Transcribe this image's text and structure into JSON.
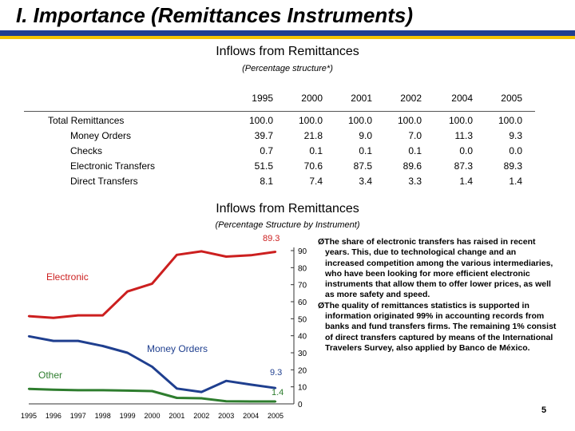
{
  "slide": {
    "title": "I. Importance (Remittances Instruments)",
    "page_number": "5",
    "colors": {
      "title_bar_blue": "#1f3f8f",
      "title_bar_gold": "#f2c400"
    }
  },
  "table": {
    "title": "Inflows from Remittances",
    "subtitle": "(Percentage structure*)",
    "years": [
      "1995",
      "2000",
      "2001",
      "2002",
      "2004",
      "2005"
    ],
    "rows": [
      {
        "label": "Total Remittances",
        "values": [
          "100.0",
          "100.0",
          "100.0",
          "100.0",
          "100.0",
          "100.0"
        ]
      },
      {
        "label": "Money Orders",
        "values": [
          "39.7",
          "21.8",
          "9.0",
          "7.0",
          "11.3",
          "9.3"
        ]
      },
      {
        "label": "Checks",
        "values": [
          "0.7",
          "0.1",
          "0.1",
          "0.1",
          "0.0",
          "0.0"
        ]
      },
      {
        "label": "Electronic Transfers",
        "values": [
          "51.5",
          "70.6",
          "87.5",
          "89.6",
          "87.3",
          "89.3"
        ]
      },
      {
        "label": "Direct Transfers",
        "values": [
          "8.1",
          "7.4",
          "3.4",
          "3.3",
          "1.4",
          "1.4"
        ]
      }
    ]
  },
  "chart_data": {
    "type": "line",
    "title": "Inflows from Remittances",
    "subtitle": "(Percentage Structure by Instrument)",
    "x": [
      "1995",
      "1996",
      "1997",
      "1998",
      "1999",
      "2000",
      "2001",
      "2002",
      "2003",
      "2004",
      "2005"
    ],
    "ylim": [
      0,
      90
    ],
    "yticks": [
      "0",
      "10",
      "20",
      "30",
      "40",
      "50",
      "60",
      "70",
      "80",
      "90"
    ],
    "y_axis_side": "right",
    "grid": false,
    "series": [
      {
        "name": "Electronic",
        "color": "#cc1f1f",
        "values": [
          51.5,
          50.5,
          52,
          52,
          66,
          70.6,
          87.5,
          89.6,
          86.5,
          87.3,
          89.3
        ],
        "end_label": "89.3"
      },
      {
        "name": "Money Orders",
        "color": "#1f3f8f",
        "values": [
          39.7,
          37,
          37,
          34,
          30,
          21.8,
          9.0,
          7.0,
          13.5,
          11.3,
          9.3
        ],
        "end_label": "9.3"
      },
      {
        "name": "Other",
        "color": "#2e7d2e",
        "values": [
          8.8,
          8.3,
          8.0,
          8.0,
          7.8,
          7.5,
          3.5,
          3.3,
          1.5,
          1.4,
          1.4
        ],
        "end_label": "1.4"
      }
    ]
  },
  "notes": [
    "ØThe share of electronic transfers has raised in recent years. This, due to technological change and an increased competition among the various intermediaries, who have been looking for more efficient electronic instruments that allow them to offer lower prices, as well as more safety and speed.",
    "ØThe quality of remittances statistics is supported in information originated 99% in accounting records from banks and fund transfers firms. The remaining 1% consist of direct transfers captured by means of the International Travelers Survey, also applied by Banco de México."
  ]
}
